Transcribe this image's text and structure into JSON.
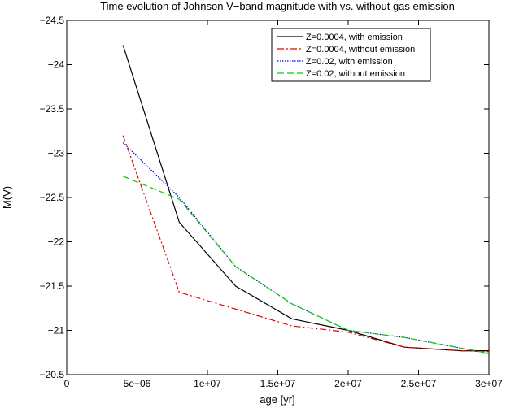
{
  "chart_data": {
    "type": "line",
    "title": "Time evolution of Johnson V−band magnitude with vs. without gas emission",
    "xlabel": "age [yr]",
    "ylabel": "M(V)",
    "xlim": [
      0,
      30000000
    ],
    "ylim": [
      -20.5,
      -24.5
    ],
    "y_inverted": true,
    "grid": false,
    "legend_position": "top-right",
    "x_ticks": [
      0,
      5000000,
      10000000,
      15000000,
      20000000,
      25000000,
      30000000
    ],
    "x_tick_labels": [
      "0",
      "5e+06",
      "1e+07",
      "1.5e+07",
      "2e+07",
      "2.5e+07",
      "3e+07"
    ],
    "y_ticks": [
      -24.5,
      -24,
      -23.5,
      -23,
      -22.5,
      -22,
      -21.5,
      -21,
      -20.5
    ],
    "y_tick_labels": [
      "−24.5",
      "−24",
      "−23.5",
      "−23",
      "−22.5",
      "−22",
      "−21.5",
      "−21",
      "−20.5"
    ],
    "series": [
      {
        "name": "Z=0.0004, with emission",
        "color": "#000000",
        "dash": "solid",
        "x": [
          4000000,
          8000000,
          12000000,
          16000000,
          20000000,
          24000000,
          28000000,
          30000000
        ],
        "y": [
          -24.22,
          -22.22,
          -21.5,
          -21.13,
          -21.0,
          -20.81,
          -20.77,
          -20.77
        ]
      },
      {
        "name": "Z=0.0004, without emission",
        "color": "#e00000",
        "dash": "dashdot",
        "x": [
          4000000,
          8000000,
          12000000,
          16000000,
          20000000,
          24000000,
          28000000,
          30000000
        ],
        "y": [
          -23.2,
          -21.43,
          -21.24,
          -21.05,
          -20.98,
          -20.81,
          -20.77,
          -20.76
        ]
      },
      {
        "name": "Z=0.02, with emission",
        "color": "#0000e0",
        "dash": "dotted",
        "x": [
          4000000,
          8000000,
          12000000,
          16000000,
          20000000,
          24000000,
          28000000,
          30000000
        ],
        "y": [
          -23.12,
          -22.5,
          -21.72,
          -21.3,
          -21.0,
          -20.92,
          -20.8,
          -20.74
        ]
      },
      {
        "name": "Z=0.02, without emission",
        "color": "#00cc00",
        "dash": "dashed",
        "x": [
          4000000,
          8000000,
          12000000,
          16000000,
          20000000,
          24000000,
          28000000,
          30000000
        ],
        "y": [
          -22.74,
          -22.48,
          -21.72,
          -21.3,
          -21.0,
          -20.92,
          -20.8,
          -20.74
        ]
      }
    ]
  }
}
